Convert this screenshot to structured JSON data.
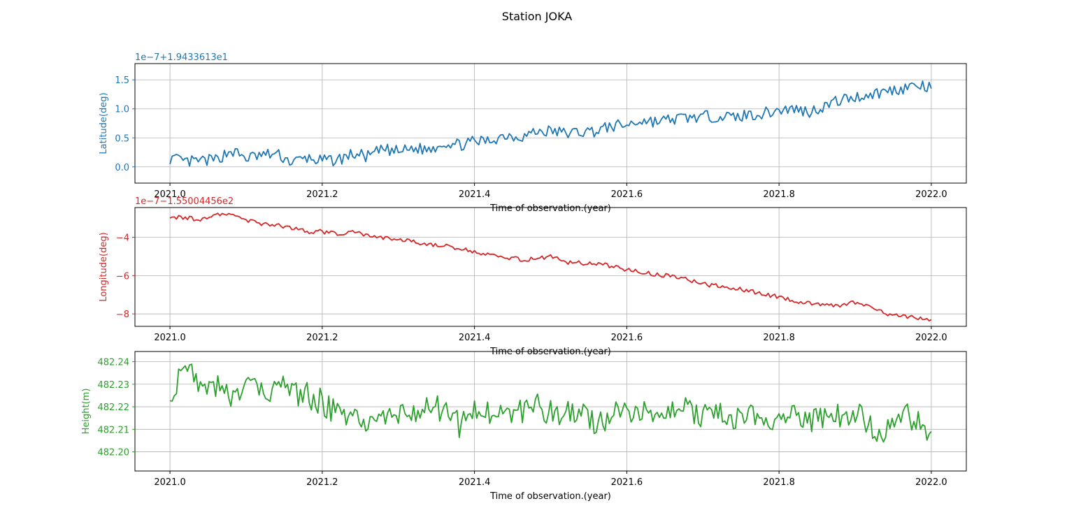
{
  "figure_title": "Station JOKA",
  "chart_data": [
    {
      "type": "line",
      "title": "",
      "xlabel": "Time of observation.(year)",
      "ylabel": "Latitude(deg)",
      "offset_text": "1e−7+1.9433613e1",
      "color": "#1f77b4",
      "grid": true,
      "xlim": [
        2020.95,
        2021.05
      ],
      "ylim": [
        -0.28,
        1.78
      ],
      "xticks": [
        2021.0,
        2021.2,
        2021.4,
        2021.6,
        2021.8,
        2022.0
      ],
      "xtick_labels": [
        "2021.0",
        "2021.2",
        "2021.4",
        "2021.6",
        "2021.8",
        "2022.0"
      ],
      "yticks": [
        0.0,
        0.5,
        1.0,
        1.5
      ],
      "ytick_labels": [
        "0.0",
        "0.5",
        "1.0",
        "1.5"
      ],
      "series": [
        {
          "x": [
            2021.0,
            2021.02,
            2021.04,
            2021.06,
            2021.08,
            2021.1,
            2021.12,
            2021.14,
            2021.16,
            2021.18,
            2021.2,
            2021.22,
            2021.24,
            2021.26,
            2021.28,
            2021.3,
            2021.32,
            2021.34,
            2021.36,
            2021.38,
            2021.4,
            2021.42,
            2021.44,
            2021.46,
            2021.48,
            2021.5,
            2021.52,
            2021.54,
            2021.56,
            2021.58,
            2021.6,
            2021.62,
            2021.64,
            2021.66,
            2021.68,
            2021.7,
            2021.72,
            2021.74,
            2021.76,
            2021.78,
            2021.8,
            2021.82,
            2021.84,
            2021.86,
            2021.88,
            2021.9,
            2021.92,
            2021.94,
            2021.96,
            2021.98,
            2022.0
          ],
          "y": [
            0.15,
            0.08,
            0.1,
            0.12,
            0.28,
            0.15,
            0.2,
            0.22,
            0.08,
            0.15,
            0.1,
            0.12,
            0.22,
            0.18,
            0.3,
            0.26,
            0.32,
            0.3,
            0.42,
            0.38,
            0.43,
            0.45,
            0.55,
            0.52,
            0.6,
            0.62,
            0.58,
            0.6,
            0.62,
            0.7,
            0.72,
            0.8,
            0.78,
            0.82,
            0.85,
            0.86,
            0.88,
            0.85,
            0.9,
            0.92,
            0.98,
            1.0,
            0.95,
            1.05,
            1.15,
            1.2,
            1.25,
            1.3,
            1.35,
            1.4,
            1.35
          ]
        }
      ]
    },
    {
      "type": "line",
      "title": "",
      "xlabel": "Time of observation.(year)",
      "ylabel": "Longitude(deg)",
      "offset_text": "1e−7−1.55004456e2",
      "color": "#d62728",
      "grid": true,
      "ylim": [
        -8.65,
        -2.45
      ],
      "xticks": [
        2021.0,
        2021.2,
        2021.4,
        2021.6,
        2021.8,
        2022.0
      ],
      "xtick_labels": [
        "2021.0",
        "2021.2",
        "2021.4",
        "2021.6",
        "2021.8",
        "2022.0"
      ],
      "yticks": [
        -8,
        -6,
        -4
      ],
      "ytick_labels": [
        "−8",
        "−6",
        "−4"
      ],
      "series": [
        {
          "x": [
            2021.0,
            2021.02,
            2021.04,
            2021.06,
            2021.08,
            2021.1,
            2021.12,
            2021.14,
            2021.16,
            2021.18,
            2021.2,
            2021.22,
            2021.24,
            2021.26,
            2021.28,
            2021.3,
            2021.32,
            2021.34,
            2021.36,
            2021.38,
            2021.4,
            2021.42,
            2021.44,
            2021.46,
            2021.48,
            2021.5,
            2021.52,
            2021.54,
            2021.56,
            2021.58,
            2021.6,
            2021.62,
            2021.64,
            2021.66,
            2021.68,
            2021.7,
            2021.72,
            2021.74,
            2021.76,
            2021.78,
            2021.8,
            2021.82,
            2021.84,
            2021.86,
            2021.88,
            2021.9,
            2021.92,
            2021.94,
            2021.96,
            2021.98,
            2022.0
          ],
          "y": [
            -2.9,
            -3.0,
            -3.05,
            -2.8,
            -2.85,
            -3.1,
            -3.3,
            -3.35,
            -3.5,
            -3.7,
            -3.7,
            -3.85,
            -3.75,
            -3.9,
            -4.05,
            -4.1,
            -4.25,
            -4.35,
            -4.45,
            -4.6,
            -4.75,
            -4.95,
            -5.05,
            -5.15,
            -5.15,
            -5.0,
            -5.3,
            -5.35,
            -5.4,
            -5.5,
            -5.7,
            -5.85,
            -5.95,
            -6.0,
            -6.2,
            -6.45,
            -6.55,
            -6.65,
            -6.8,
            -7.0,
            -7.1,
            -7.3,
            -7.45,
            -7.5,
            -7.55,
            -7.4,
            -7.65,
            -8.0,
            -8.1,
            -8.2,
            -8.3
          ]
        }
      ]
    },
    {
      "type": "line",
      "title": "",
      "xlabel": "Time of observation.(year)",
      "ylabel": "Height(m)",
      "color": "#2ca02c",
      "grid": true,
      "ylim": [
        482.1915,
        482.2445
      ],
      "xticks": [
        2021.0,
        2021.2,
        2021.4,
        2021.6,
        2021.8,
        2022.0
      ],
      "xtick_labels": [
        "2021.0",
        "2021.2",
        "2021.4",
        "2021.6",
        "2021.8",
        "2022.0"
      ],
      "yticks": [
        482.2,
        482.21,
        482.22,
        482.23,
        482.24
      ],
      "ytick_labels": [
        "482.20",
        "482.21",
        "482.22",
        "482.23",
        "482.24"
      ],
      "series": [
        {
          "x": [
            2021.0,
            2021.02,
            2021.04,
            2021.06,
            2021.08,
            2021.1,
            2021.12,
            2021.14,
            2021.16,
            2021.18,
            2021.2,
            2021.22,
            2021.24,
            2021.26,
            2021.28,
            2021.3,
            2021.32,
            2021.34,
            2021.36,
            2021.38,
            2021.4,
            2021.42,
            2021.44,
            2021.46,
            2021.48,
            2021.5,
            2021.52,
            2021.54,
            2021.56,
            2021.58,
            2021.6,
            2021.62,
            2021.64,
            2021.66,
            2021.68,
            2021.7,
            2021.72,
            2021.74,
            2021.76,
            2021.78,
            2021.8,
            2021.82,
            2021.84,
            2021.86,
            2021.88,
            2021.9,
            2021.92,
            2021.94,
            2021.96,
            2021.98,
            2022.0
          ],
          "y": [
            482.227,
            482.236,
            482.232,
            482.23,
            482.226,
            482.228,
            482.226,
            482.229,
            482.227,
            482.225,
            482.222,
            482.217,
            482.215,
            482.21,
            482.213,
            482.215,
            482.218,
            482.22,
            482.219,
            482.212,
            482.219,
            482.216,
            482.219,
            482.218,
            482.222,
            482.217,
            482.217,
            482.216,
            482.213,
            482.216,
            482.219,
            482.217,
            482.218,
            482.22,
            482.219,
            482.215,
            482.216,
            482.215,
            482.216,
            482.214,
            482.216,
            482.215,
            482.214,
            482.215,
            482.216,
            482.218,
            482.212,
            482.208,
            482.218,
            482.214,
            482.209
          ]
        }
      ]
    }
  ]
}
